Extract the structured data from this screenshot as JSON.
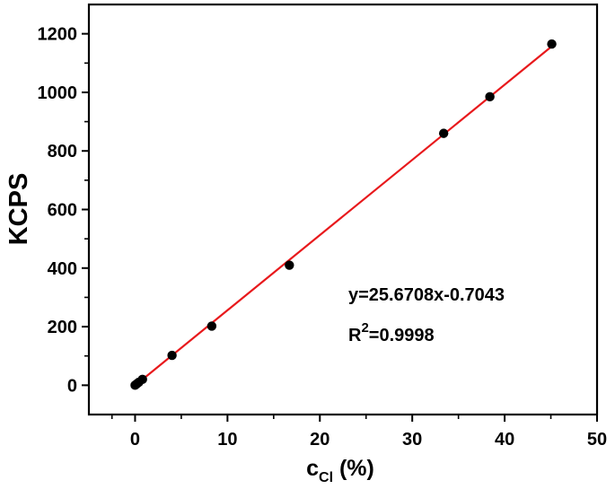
{
  "chart_data": {
    "type": "scatter",
    "title": "",
    "xlabel": {
      "main": "c",
      "sub": "Cl",
      "rest": " (%)"
    },
    "ylabel": "KCPS",
    "xlim": [
      -5,
      50
    ],
    "ylim": [
      -100,
      1300
    ],
    "xticks": [
      0,
      10,
      20,
      30,
      40,
      50
    ],
    "yticks": [
      0,
      200,
      400,
      600,
      800,
      1000,
      1200
    ],
    "grid": false,
    "legend": "none",
    "points": [
      {
        "x": 0.0,
        "y": 0
      },
      {
        "x": 0.2,
        "y": 5
      },
      {
        "x": 0.4,
        "y": 10
      },
      {
        "x": 0.8,
        "y": 20
      },
      {
        "x": 4.0,
        "y": 102
      },
      {
        "x": 8.3,
        "y": 202
      },
      {
        "x": 16.7,
        "y": 410
      },
      {
        "x": 33.4,
        "y": 860
      },
      {
        "x": 38.4,
        "y": 985
      },
      {
        "x": 45.1,
        "y": 1165
      }
    ],
    "fit": {
      "slope": 25.6708,
      "intercept": -0.7043,
      "x_range": [
        0,
        45.1
      ]
    },
    "annotations": {
      "equation": "y=25.6708x-0.7043",
      "r2_label": "R",
      "r2_sup": "2",
      "r2_value": "=0.9998"
    },
    "colors": {
      "fit_line": "#e8191c",
      "points": "#000000",
      "axes": "#000000"
    }
  }
}
